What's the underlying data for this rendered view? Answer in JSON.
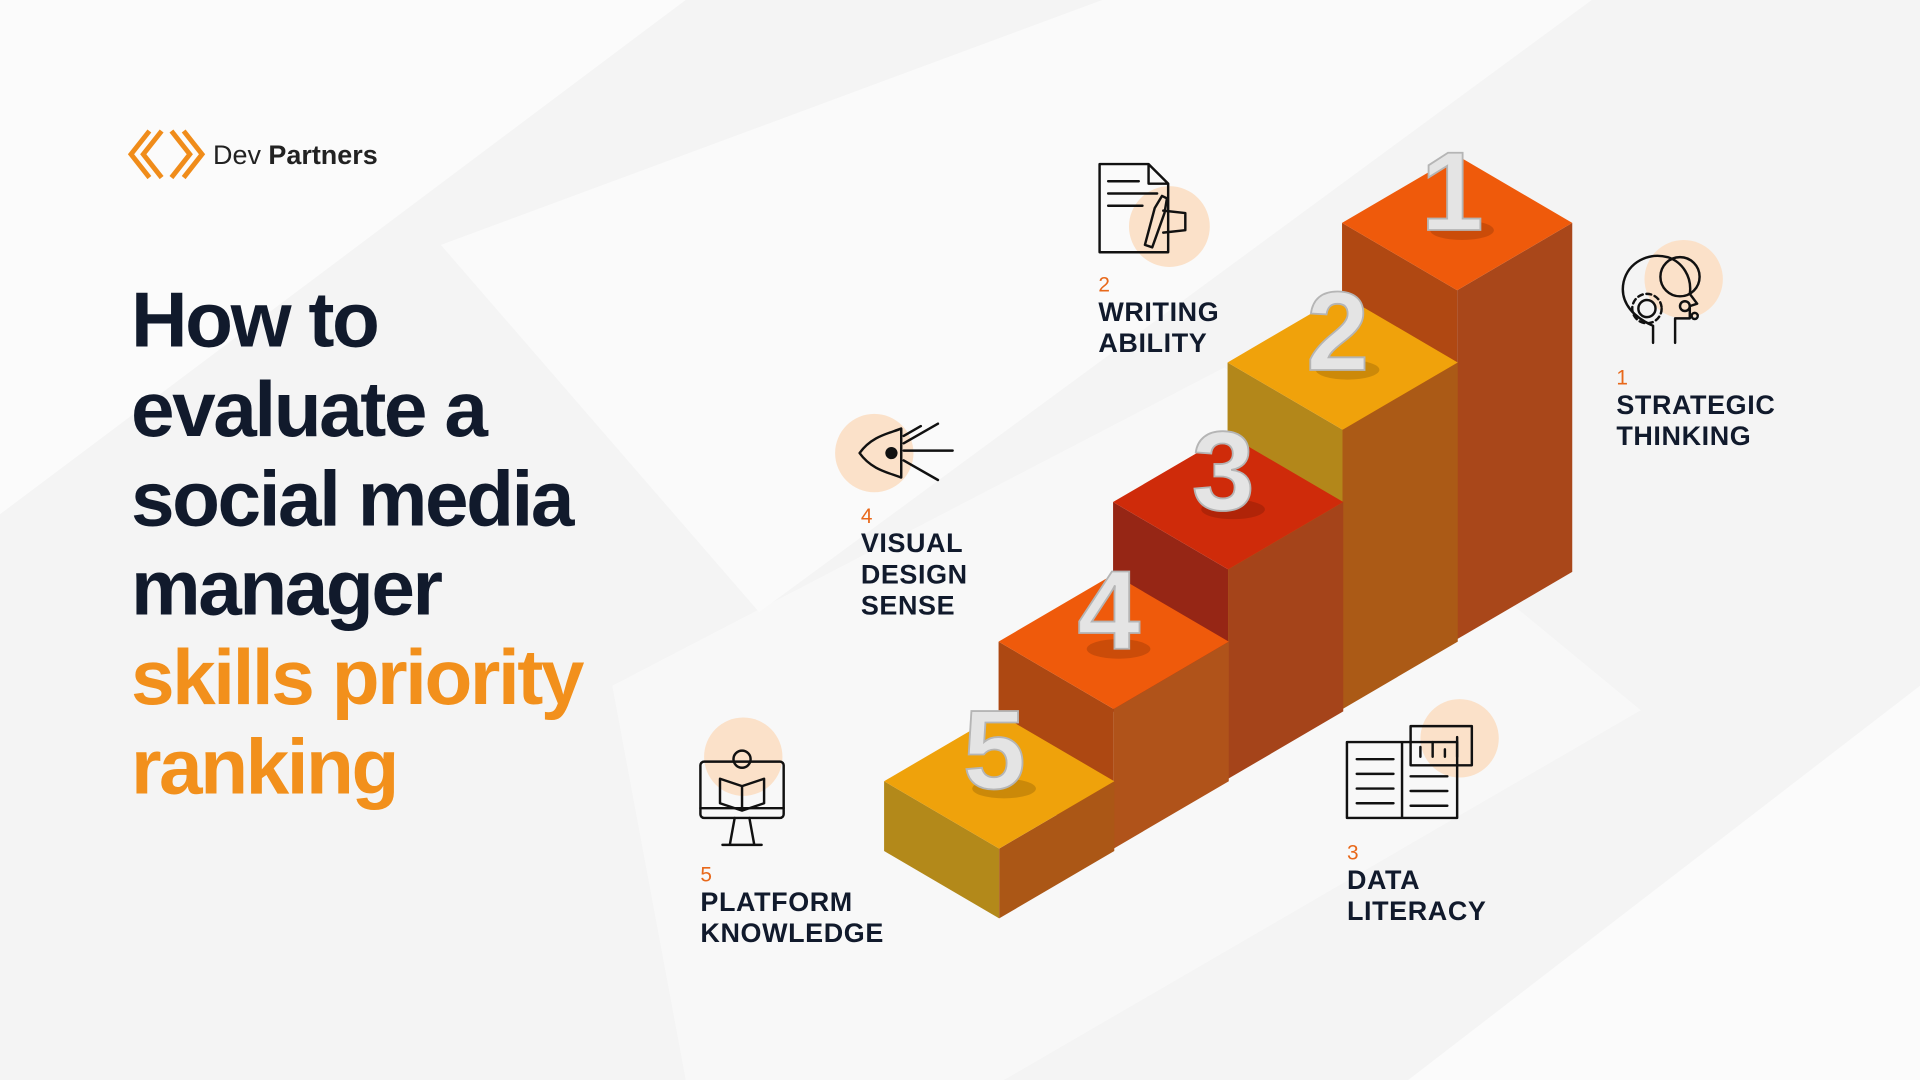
{
  "logo": {
    "name_light": "Dev",
    "name_bold": "Partners"
  },
  "title": {
    "lines": [
      "How to",
      "evaluate a",
      "social media",
      "manager"
    ],
    "highlight": [
      "skills priority",
      "ranking"
    ]
  },
  "skills": [
    {
      "rank": "1",
      "name": [
        "STRATEGIC",
        "THINKING"
      ]
    },
    {
      "rank": "2",
      "name": [
        "WRITING",
        "ABILITY"
      ]
    },
    {
      "rank": "3",
      "name": [
        "DATA",
        "LITERACY"
      ]
    },
    {
      "rank": "4",
      "name": [
        "VISUAL",
        "DESIGN",
        "SENSE"
      ]
    },
    {
      "rank": "5",
      "name": [
        "PLATFORM",
        "KNOWLEDGE"
      ]
    }
  ]
}
